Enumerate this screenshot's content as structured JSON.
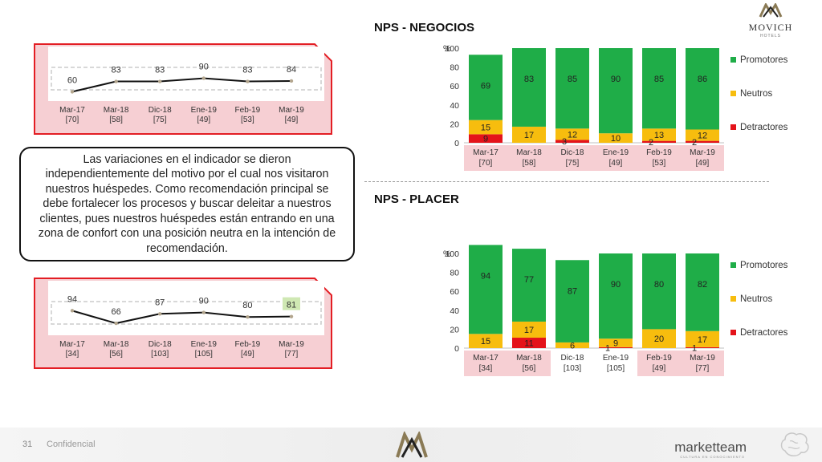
{
  "brand": {
    "name": "MOVICH",
    "sub": "HOTELS"
  },
  "text_box": "Las variaciones en el indicador se dieron independientemente del motivo por el cual nos visitaron nuestros huéspedes. Como recomendación principal se debe fortalecer los procesos y buscar deleitar a nuestros clientes, pues nuestros huéspedes están entrando en una zona de confort con una posición neutra en la intención de recomendación.",
  "footer": {
    "page": "31",
    "note": "Confidencial",
    "logo": "marketteam",
    "tagline": "CULTURA EN CONOCIMIENTO"
  },
  "colors": {
    "promotores": "#1fad48",
    "neutros": "#f7bd0e",
    "detractores": "#e4131a",
    "pink_panel": "#f6cfd3",
    "red_border": "#e31e24"
  },
  "chart_data": [
    {
      "id": "negocios-line",
      "type": "line",
      "categories": [
        "Mar-17",
        "Mar-18",
        "Dic-18",
        "Ene-19",
        "Feb-19",
        "Mar-19"
      ],
      "sample_sizes": [
        "[70]",
        "[58]",
        "[75]",
        "[49]",
        "[53]",
        "[49]"
      ],
      "values": [
        60,
        83,
        83,
        90,
        83,
        84
      ]
    },
    {
      "id": "placer-line",
      "type": "line",
      "categories": [
        "Mar-17",
        "Mar-18",
        "Dic-18",
        "Ene-19",
        "Feb-19",
        "Mar-19"
      ],
      "sample_sizes": [
        "[34]",
        "[56]",
        "[103]",
        "[105]",
        "[49]",
        "[77]"
      ],
      "values": [
        94,
        66,
        87,
        90,
        80,
        81
      ],
      "highlight_index": 5
    },
    {
      "id": "negocios-bar",
      "type": "bar",
      "title": "NPS - NEGOCIOS",
      "ylabel": "%",
      "ylim": [
        0,
        100
      ],
      "yticks": [
        0,
        20,
        40,
        60,
        80,
        100
      ],
      "categories": [
        "Mar-17",
        "Mar-18",
        "Dic-18",
        "Ene-19",
        "Feb-19",
        "Mar-19"
      ],
      "sample_sizes": [
        "[70]",
        "[58]",
        "[75]",
        "[49]",
        "[53]",
        "[49]"
      ],
      "series": [
        {
          "name": "Detractores",
          "values": [
            9,
            0,
            3,
            0,
            2,
            2
          ]
        },
        {
          "name": "Neutros",
          "values": [
            15,
            17,
            12,
            10,
            13,
            12
          ]
        },
        {
          "name": "Promotores",
          "values": [
            69,
            83,
            85,
            90,
            85,
            86
          ]
        }
      ],
      "legend": [
        "Promotores",
        "Neutros",
        "Detractores"
      ]
    },
    {
      "id": "placer-bar",
      "type": "bar",
      "title": "NPS - PLACER",
      "ylabel": "%",
      "ylim": [
        0,
        100
      ],
      "yticks": [
        0,
        20,
        40,
        60,
        80,
        100
      ],
      "categories": [
        "Mar-17",
        "Mar-18",
        "Dic-18",
        "Ene-19",
        "Feb-19",
        "Mar-19"
      ],
      "sample_sizes": [
        "[34]",
        "[56]",
        "[103]",
        "[105]",
        "[49]",
        "[77]"
      ],
      "series": [
        {
          "name": "Detractores",
          "values": [
            0,
            11,
            0,
            1,
            0,
            1
          ]
        },
        {
          "name": "Neutros",
          "values": [
            15,
            17,
            6,
            9,
            20,
            17
          ]
        },
        {
          "name": "Promotores",
          "values": [
            94,
            77,
            87,
            90,
            80,
            82
          ]
        }
      ],
      "legend": [
        "Promotores",
        "Neutros",
        "Detractores"
      ]
    }
  ]
}
